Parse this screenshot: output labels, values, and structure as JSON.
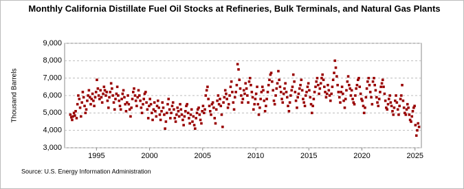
{
  "chart_data": {
    "type": "scatter",
    "title": "Monthly California Distillate Fuel Oil Stocks at Refineries, Bulk Terminals, and Natural Gas Plants",
    "y_label": "Thousand Barrels",
    "source": "Source: U.S. Energy Information Administration",
    "xlim": [
      1992,
      2025.6
    ],
    "xticks": [
      1995,
      2000,
      2005,
      2010,
      2015,
      2020,
      2025
    ],
    "ylim": [
      3000,
      9000
    ],
    "yticks": [
      {
        "value": 3000,
        "label": "3,000"
      },
      {
        "value": 4000,
        "label": "4,000"
      },
      {
        "value": 5000,
        "label": "5,000"
      },
      {
        "value": 6000,
        "label": "6,000"
      },
      {
        "value": 7000,
        "label": "7,000"
      },
      {
        "value": 8000,
        "label": "8,000"
      },
      {
        "value": 9000,
        "label": "9,000"
      }
    ],
    "grid": true,
    "color": "#990000",
    "x": [
      1992.54,
      1992.63,
      1992.71,
      1992.79,
      1992.88,
      1992.96,
      1993.04,
      1993.13,
      1993.21,
      1993.29,
      1993.38,
      1993.46,
      1993.54,
      1993.63,
      1993.71,
      1993.79,
      1993.88,
      1993.96,
      1994.04,
      1994.13,
      1994.21,
      1994.29,
      1994.38,
      1994.46,
      1994.54,
      1994.63,
      1994.71,
      1994.79,
      1994.88,
      1994.96,
      1995.04,
      1995.13,
      1995.21,
      1995.29,
      1995.38,
      1995.46,
      1995.54,
      1995.63,
      1995.71,
      1995.79,
      1995.88,
      1995.96,
      1996.04,
      1996.13,
      1996.21,
      1996.29,
      1996.38,
      1996.46,
      1996.54,
      1996.63,
      1996.71,
      1996.79,
      1996.88,
      1996.96,
      1997.04,
      1997.13,
      1997.21,
      1997.29,
      1997.38,
      1997.46,
      1997.54,
      1997.63,
      1997.71,
      1997.79,
      1997.88,
      1997.96,
      1998.04,
      1998.13,
      1998.21,
      1998.29,
      1998.38,
      1998.46,
      1998.54,
      1998.63,
      1998.71,
      1998.79,
      1998.88,
      1998.96,
      1999.04,
      1999.13,
      1999.21,
      1999.29,
      1999.38,
      1999.46,
      1999.54,
      1999.63,
      1999.71,
      1999.79,
      1999.88,
      1999.96,
      2000.04,
      2000.13,
      2000.21,
      2000.29,
      2000.38,
      2000.46,
      2000.54,
      2000.63,
      2000.71,
      2000.79,
      2000.88,
      2000.96,
      2001.04,
      2001.13,
      2001.21,
      2001.29,
      2001.38,
      2001.46,
      2001.54,
      2001.63,
      2001.71,
      2001.79,
      2001.88,
      2001.96,
      2002.04,
      2002.13,
      2002.21,
      2002.29,
      2002.38,
      2002.46,
      2002.54,
      2002.63,
      2002.71,
      2002.79,
      2002.88,
      2002.96,
      2003.04,
      2003.13,
      2003.21,
      2003.29,
      2003.38,
      2003.46,
      2003.54,
      2003.63,
      2003.71,
      2003.79,
      2003.88,
      2003.96,
      2004.04,
      2004.13,
      2004.21,
      2004.29,
      2004.38,
      2004.46,
      2004.54,
      2004.63,
      2004.71,
      2004.79,
      2004.88,
      2004.96,
      2005.04,
      2005.13,
      2005.21,
      2005.29,
      2005.38,
      2005.46,
      2005.54,
      2005.63,
      2005.71,
      2005.79,
      2005.88,
      2005.96,
      2006.04,
      2006.13,
      2006.21,
      2006.29,
      2006.38,
      2006.46,
      2006.54,
      2006.63,
      2006.71,
      2006.79,
      2006.88,
      2006.96,
      2007.04,
      2007.13,
      2007.21,
      2007.29,
      2007.38,
      2007.46,
      2007.54,
      2007.63,
      2007.71,
      2007.79,
      2007.88,
      2007.96,
      2008.04,
      2008.13,
      2008.21,
      2008.29,
      2008.38,
      2008.46,
      2008.54,
      2008.63,
      2008.71,
      2008.79,
      2008.88,
      2008.96,
      2009.04,
      2009.13,
      2009.21,
      2009.29,
      2009.38,
      2009.46,
      2009.54,
      2009.63,
      2009.71,
      2009.79,
      2009.88,
      2009.96,
      2010.04,
      2010.13,
      2010.21,
      2010.29,
      2010.38,
      2010.46,
      2010.54,
      2010.63,
      2010.71,
      2010.79,
      2010.88,
      2010.96,
      2011.04,
      2011.13,
      2011.21,
      2011.29,
      2011.38,
      2011.46,
      2011.54,
      2011.63,
      2011.71,
      2011.79,
      2011.88,
      2011.96,
      2012.04,
      2012.13,
      2012.21,
      2012.29,
      2012.38,
      2012.46,
      2012.54,
      2012.63,
      2012.71,
      2012.79,
      2012.88,
      2012.96,
      2013.04,
      2013.13,
      2013.21,
      2013.29,
      2013.38,
      2013.46,
      2013.54,
      2013.63,
      2013.71,
      2013.79,
      2013.88,
      2013.96,
      2014.04,
      2014.13,
      2014.21,
      2014.29,
      2014.38,
      2014.46,
      2014.54,
      2014.63,
      2014.71,
      2014.79,
      2014.88,
      2014.96,
      2015.04,
      2015.13,
      2015.21,
      2015.29,
      2015.38,
      2015.46,
      2015.54,
      2015.63,
      2015.71,
      2015.79,
      2015.88,
      2015.96,
      2016.04,
      2016.13,
      2016.21,
      2016.29,
      2016.38,
      2016.46,
      2016.54,
      2016.63,
      2016.71,
      2016.79,
      2016.88,
      2016.96,
      2017.04,
      2017.13,
      2017.21,
      2017.29,
      2017.38,
      2017.46,
      2017.54,
      2017.63,
      2017.71,
      2017.79,
      2017.88,
      2017.96,
      2018.04,
      2018.13,
      2018.21,
      2018.29,
      2018.38,
      2018.46,
      2018.54,
      2018.63,
      2018.71,
      2018.79,
      2018.88,
      2018.96,
      2019.04,
      2019.13,
      2019.21,
      2019.29,
      2019.38,
      2019.46,
      2019.54,
      2019.63,
      2019.71,
      2019.79,
      2019.88,
      2019.96,
      2020.04,
      2020.13,
      2020.21,
      2020.29,
      2020.38,
      2020.46,
      2020.54,
      2020.63,
      2020.71,
      2020.79,
      2020.88,
      2020.96,
      2021.04,
      2021.13,
      2021.21,
      2021.29,
      2021.38,
      2021.46,
      2021.54,
      2021.63,
      2021.71,
      2021.79,
      2021.88,
      2021.96,
      2022.04,
      2022.13,
      2022.21,
      2022.29,
      2022.38,
      2022.46,
      2022.54,
      2022.63,
      2022.71,
      2022.79,
      2022.88,
      2022.96,
      2023.04,
      2023.13,
      2023.21,
      2023.29,
      2023.38,
      2023.46,
      2023.54,
      2023.63,
      2023.71,
      2023.79,
      2023.88,
      2023.96,
      2024.04,
      2024.13,
      2024.21,
      2024.29,
      2024.38,
      2024.46,
      2024.54,
      2024.63,
      2024.71,
      2024.79,
      2024.88,
      2024.96,
      2025.04,
      2025.13,
      2025.21,
      2025.29,
      2025.38
    ],
    "values": [
      4900,
      4750,
      4600,
      4800,
      5000,
      4850,
      5100,
      4700,
      5500,
      6000,
      5800,
      5300,
      4800,
      5600,
      6200,
      5900,
      5400,
      5000,
      5200,
      5700,
      6000,
      6300,
      5900,
      5500,
      5800,
      6100,
      5700,
      5400,
      5900,
      6200,
      6900,
      6400,
      6000,
      5800,
      6300,
      5900,
      5600,
      6100,
      6500,
      6300,
      6000,
      6200,
      5700,
      5300,
      5900,
      6200,
      6700,
      6400,
      6000,
      5600,
      5200,
      5800,
      6100,
      6500,
      6000,
      5700,
      5400,
      5200,
      5800,
      6100,
      6300,
      5900,
      5500,
      5100,
      5600,
      6000,
      5500,
      5200,
      4800,
      5300,
      5800,
      6200,
      6400,
      6000,
      5700,
      5400,
      5900,
      6300,
      6000,
      5700,
      5300,
      5000,
      5500,
      5800,
      6100,
      6200,
      5600,
      5200,
      4700,
      5400,
      5800,
      5500,
      5000,
      4600,
      5200,
      5600,
      5100,
      4800,
      5400,
      5700,
      5300,
      4900,
      4600,
      5100,
      5600,
      5300,
      4900,
      4100,
      4500,
      5000,
      5500,
      5800,
      5200,
      4700,
      5000,
      5400,
      5600,
      5200,
      4700,
      4500,
      4900,
      5300,
      5100,
      4800,
      5500,
      5200,
      4900,
      4600,
      4300,
      4800,
      5100,
      5400,
      5500,
      5000,
      4700,
      4400,
      4900,
      5200,
      4500,
      4800,
      4300,
      4100,
      4700,
      5000,
      5200,
      5300,
      4900,
      4600,
      4400,
      5100,
      5400,
      5000,
      5200,
      6000,
      6300,
      6500,
      5800,
      5400,
      5100,
      4900,
      5500,
      5600,
      5300,
      4700,
      4400,
      5200,
      5700,
      6000,
      5500,
      5800,
      5400,
      4900,
      4200,
      5600,
      5900,
      6300,
      6100,
      5800,
      5300,
      5500,
      6000,
      6500,
      6800,
      6200,
      5600,
      5200,
      5900,
      6200,
      6600,
      7800,
      7500,
      6900,
      6400,
      6000,
      5600,
      5800,
      6300,
      6100,
      6700,
      6400,
      6000,
      5600,
      6800,
      7000,
      6600,
      6200,
      5900,
      5200,
      5500,
      5800,
      6100,
      6500,
      5500,
      4900,
      5300,
      5800,
      6200,
      6500,
      6300,
      5700,
      5100,
      5400,
      5800,
      6200,
      6600,
      6900,
      7200,
      7300,
      6800,
      6300,
      5700,
      5500,
      6000,
      6400,
      6700,
      7400,
      6900,
      6500,
      6200,
      5800,
      5600,
      6100,
      6400,
      6700,
      6200,
      5900,
      5400,
      5100,
      5600,
      6000,
      6300,
      6500,
      7200,
      6800,
      6200,
      5700,
      5300,
      5900,
      6100,
      6400,
      6600,
      6900,
      6300,
      5800,
      5600,
      5400,
      6000,
      6200,
      6500,
      6700,
      6300,
      5900,
      5500,
      5000,
      5400,
      5800,
      6200,
      6500,
      6800,
      7000,
      6600,
      6100,
      6400,
      6700,
      7000,
      7200,
      6900,
      6500,
      6200,
      5900,
      6100,
      6600,
      6300,
      6000,
      5700,
      6100,
      6500,
      6900,
      7300,
      8000,
      7600,
      7100,
      6600,
      6200,
      5900,
      5600,
      6200,
      6500,
      6100,
      5700,
      5300,
      5800,
      6300,
      6800,
      7100,
      6600,
      6400,
      6000,
      6300,
      5800,
      5600,
      5500,
      6000,
      6400,
      6600,
      6900,
      7000,
      6500,
      6100,
      5800,
      5700,
      5400,
      5000,
      5300,
      5900,
      6400,
      6800,
      7000,
      6600,
      6200,
      5900,
      5500,
      6800,
      7000,
      6600,
      6300,
      5900,
      5600,
      5400,
      5800,
      6200,
      6500,
      6700,
      6900,
      6500,
      6100,
      5700,
      5300,
      5200,
      5500,
      5800,
      6000,
      5600,
      5400,
      5100,
      4900,
      5300,
      5700,
      6000,
      5600,
      5200,
      4900,
      5400,
      5800,
      6000,
      6600,
      5700,
      5300,
      5000,
      4900,
      5200,
      5500,
      5300,
      4900,
      4600,
      4500,
      4800,
      5100,
      5300,
      5400,
      4300,
      3700,
      4000,
      4400,
      4200
    ]
  }
}
